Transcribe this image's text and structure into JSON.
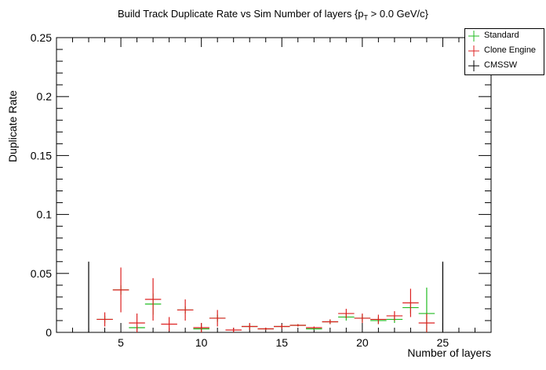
{
  "chart_data": {
    "type": "scatter",
    "title_main": "Build Track Duplicate Rate vs Sim Number of layers {p",
    "title_sub": "T",
    "title_tail": " > 0.0 GeV/c}",
    "xlabel": "Number of layers",
    "ylabel": "Duplicate Rate",
    "xlim": [
      1,
      28
    ],
    "ylim": [
      0,
      0.25
    ],
    "xticks": [
      5,
      10,
      15,
      20,
      25
    ],
    "yticks": [
      0,
      0.05,
      0.1,
      0.15,
      0.2,
      0.25
    ],
    "ytick_labels": [
      "0",
      "0.05",
      "0.1",
      "0.15",
      "0.2",
      "0.25"
    ],
    "legend_position": "top-right",
    "series": [
      {
        "name": "Standard",
        "color": "#22bb22",
        "points": [
          {
            "x": 4,
            "y": 0.011,
            "err": 0.003
          },
          {
            "x": 5,
            "y": 0.036,
            "err": 0.004
          },
          {
            "x": 6,
            "y": 0.004,
            "err": 0.002
          },
          {
            "x": 7,
            "y": 0.024,
            "err": 0.009
          },
          {
            "x": 9,
            "y": 0.019,
            "err": 0.003
          },
          {
            "x": 10,
            "y": 0.003,
            "err": 0.002
          },
          {
            "x": 11,
            "y": 0.012,
            "err": 0.003
          },
          {
            "x": 13,
            "y": 0.005,
            "err": 0.002
          },
          {
            "x": 14,
            "y": 0.003,
            "err": 0.001
          },
          {
            "x": 15,
            "y": 0.005,
            "err": 0.001
          },
          {
            "x": 16,
            "y": 0.006,
            "err": 0.001
          },
          {
            "x": 17,
            "y": 0.003,
            "err": 0.001
          },
          {
            "x": 18,
            "y": 0.009,
            "err": 0.002
          },
          {
            "x": 19,
            "y": 0.013,
            "err": 0.003
          },
          {
            "x": 20,
            "y": 0.012,
            "err": 0.003
          },
          {
            "x": 21,
            "y": 0.01,
            "err": 0.003
          },
          {
            "x": 22,
            "y": 0.011,
            "err": 0.003
          },
          {
            "x": 23,
            "y": 0.021,
            "err": 0.005
          },
          {
            "x": 24,
            "y": 0.016,
            "err": 0.022
          }
        ]
      },
      {
        "name": "Clone Engine",
        "color": "#dd2222",
        "points": [
          {
            "x": 4,
            "y": 0.011,
            "err": 0.006
          },
          {
            "x": 5,
            "y": 0.036,
            "err": 0.019
          },
          {
            "x": 6,
            "y": 0.008,
            "err": 0.008
          },
          {
            "x": 7,
            "y": 0.028,
            "err": 0.018
          },
          {
            "x": 8,
            "y": 0.007,
            "err": 0.006
          },
          {
            "x": 9,
            "y": 0.019,
            "err": 0.009
          },
          {
            "x": 10,
            "y": 0.004,
            "err": 0.004
          },
          {
            "x": 11,
            "y": 0.012,
            "err": 0.007
          },
          {
            "x": 12,
            "y": 0.002,
            "err": 0.002
          },
          {
            "x": 13,
            "y": 0.005,
            "err": 0.003
          },
          {
            "x": 14,
            "y": 0.003,
            "err": 0.001
          },
          {
            "x": 15,
            "y": 0.005,
            "err": 0.002
          },
          {
            "x": 16,
            "y": 0.006,
            "err": 0.001
          },
          {
            "x": 17,
            "y": 0.004,
            "err": 0.001
          },
          {
            "x": 18,
            "y": 0.009,
            "err": 0.002
          },
          {
            "x": 19,
            "y": 0.016,
            "err": 0.004
          },
          {
            "x": 20,
            "y": 0.012,
            "err": 0.004
          },
          {
            "x": 21,
            "y": 0.011,
            "err": 0.004
          },
          {
            "x": 22,
            "y": 0.014,
            "err": 0.004
          },
          {
            "x": 23,
            "y": 0.025,
            "err": 0.012
          },
          {
            "x": 24,
            "y": 0.008,
            "err": 0.008
          }
        ]
      },
      {
        "name": "CMSSW",
        "color": "#000000",
        "points": [
          {
            "x": 3,
            "y": 0.0,
            "err": 0.06
          },
          {
            "x": 25,
            "y": 0.0,
            "err": 0.06
          }
        ]
      }
    ]
  }
}
